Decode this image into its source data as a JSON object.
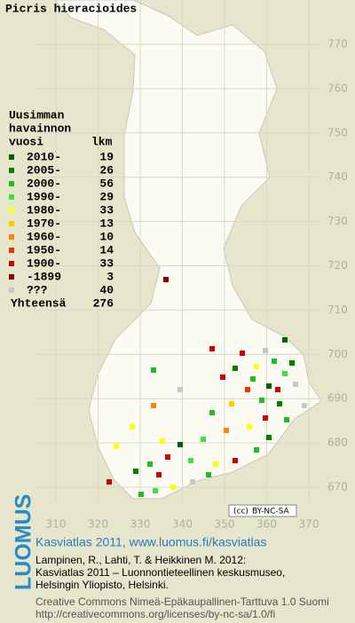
{
  "title": "Picris hieracioides",
  "legend": {
    "heading": [
      "Uusimman",
      "havainnon",
      "vuosi"
    ],
    "count_heading": "lkm",
    "items": [
      {
        "label": "2010-",
        "count": 19,
        "color": "#006400"
      },
      {
        "label": "2005-",
        "count": 26,
        "color": "#008000"
      },
      {
        "label": "2000-",
        "count": 56,
        "color": "#22bb22"
      },
      {
        "label": "1990-",
        "count": 29,
        "color": "#44dd44"
      },
      {
        "label": "1980-",
        "count": 33,
        "color": "#ffff00"
      },
      {
        "label": "1970-",
        "count": 13,
        "color": "#ffcc00"
      },
      {
        "label": "1960-",
        "count": 10,
        "color": "#ff8800"
      },
      {
        "label": "1950-",
        "count": 14,
        "color": "#ee3300"
      },
      {
        "label": "1900-",
        "count": 33,
        "color": "#cc0000"
      },
      {
        "label": "-1899",
        "count": 3,
        "color": "#880000"
      },
      {
        "label": "???",
        "count": 40,
        "color": "#c8c8c8"
      }
    ],
    "total": {
      "label": "Yhteensä",
      "count": 276
    }
  },
  "map": {
    "xticks": [
      310,
      320,
      330,
      340,
      350,
      360,
      370
    ],
    "yticks": [
      670,
      680,
      690,
      700,
      710,
      720,
      730,
      740,
      750,
      760,
      770
    ]
  },
  "license_badge": "BY-NC-SA",
  "footer": {
    "logo": "LUOMUS",
    "headline": "Kasviatlas 2011, www.luomus.fi/kasviatlas",
    "citation": [
      "Lampinen, R., Lahti, T. & Heikkinen M. 2012:",
      "Kasviatlas 2011 – Luonnontieteellinen keskusmuseo,",
      "Helsingin Yliopisto, Helsinki."
    ],
    "license": [
      "Creative Commons Nimeä-Epäkaupallinen-Tarttuva 1.0 Suomi",
      "http://creativecommons.org/licenses/by-nc-sa/1.0/fi"
    ]
  }
}
